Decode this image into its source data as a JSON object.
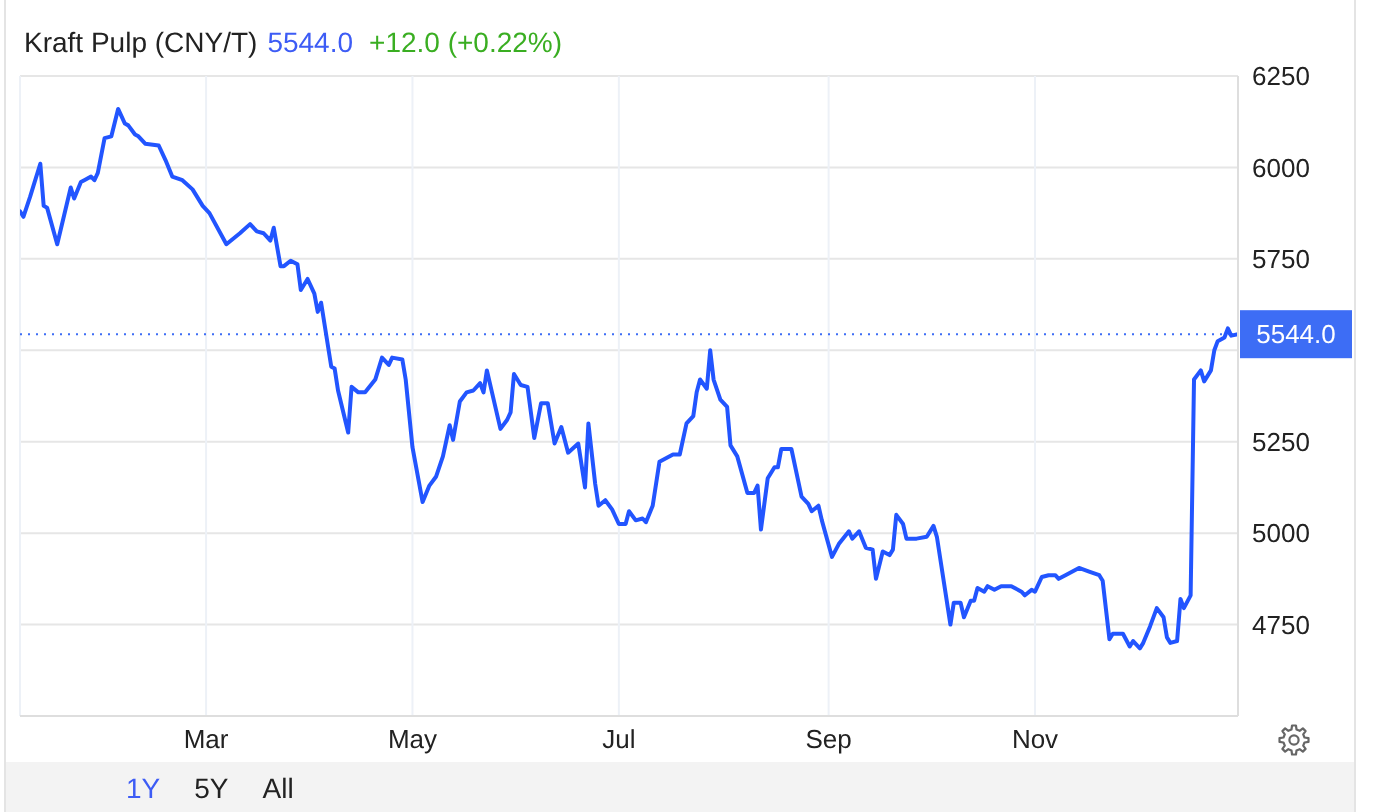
{
  "chart_data": {
    "type": "line",
    "title": "Kraft Pulp (CNY/T)",
    "annotations": [
      "5544.0",
      "+12.0 (+0.22%)",
      "1Y",
      "5Y",
      "All"
    ],
    "x": [
      "--01-05",
      "--01-06",
      "--01-08",
      "--01-09",
      "--01-11",
      "--01-12",
      "--01-13",
      "--01-16",
      "--01-20",
      "--01-21",
      "--01-23",
      "--01-24",
      "--01-26",
      "--01-27",
      "--01-28",
      "--01-30",
      "--02-01",
      "--02-03",
      "--02-05",
      "--02-06",
      "--02-08",
      "--02-09",
      "--02-11",
      "--02-15",
      "--02-17",
      "--02-19",
      "--02-22",
      "--02-25",
      "--02-28",
      "--03-02",
      "--03-07",
      "--03-11",
      "--03-14",
      "--03-16",
      "--03-18",
      "--03-19",
      "--03-20",
      "--03-21",
      "--03-23",
      "--03-24",
      "--03-26",
      "--03-28",
      "--03-29",
      "--03-31",
      "--04-02",
      "--04-03",
      "--04-04",
      "--04-07",
      "--04-08",
      "--04-09",
      "--04-12",
      "--04-13",
      "--04-15",
      "--04-17",
      "--04-20",
      "--04-22",
      "--04-24",
      "--04-25",
      "--04-28",
      "--04-29",
      "--05-01",
      "--05-04",
      "--05-06",
      "--05-08",
      "--05-10",
      "--05-12",
      "--05-13",
      "--05-15",
      "--05-17",
      "--05-19",
      "--05-21",
      "--05-22",
      "--05-23",
      "--05-27",
      "--05-29",
      "--05-30",
      "--05-31",
      "--06-02",
      "--06-04",
      "--06-06",
      "--06-08",
      "--06-10",
      "--06-12",
      "--06-14",
      "--06-16",
      "--06-19",
      "--06-21",
      "--06-22",
      "--06-24",
      "--06-25",
      "--06-27",
      "--06-29",
      "--07-01",
      "--07-03",
      "--07-04",
      "--07-06",
      "--07-08",
      "--07-09",
      "--07-11",
      "--07-13",
      "--07-17",
      "--07-19",
      "--07-21",
      "--07-23",
      "--07-24",
      "--07-25",
      "--07-27",
      "--07-28",
      "--07-29",
      "--07-31",
      "--08-02",
      "--08-03",
      "--08-05",
      "--08-08",
      "--08-10",
      "--08-11",
      "--08-12",
      "--08-14",
      "--08-16",
      "--08-17",
      "--08-18",
      "--08-21",
      "--08-24",
      "--08-26",
      "--08-27",
      "--08-29",
      "--08-30",
      "--09-02",
      "--09-04",
      "--09-07",
      "--09-08",
      "--09-10",
      "--09-12",
      "--09-14",
      "--09-15",
      "--09-17",
      "--09-19",
      "--09-20",
      "--09-21",
      "--09-23",
      "--09-24",
      "--09-27",
      "--09-30",
      "--10-02",
      "--10-03",
      "--10-07",
      "--10-08",
      "--10-10",
      "--10-11",
      "--10-13",
      "--10-14",
      "--10-15",
      "--10-17",
      "--10-18",
      "--10-20",
      "--10-22",
      "--10-25",
      "--10-28",
      "--10-29",
      "--10-31",
      "--11-01",
      "--11-03",
      "--11-05",
      "--11-07",
      "--11-08",
      "--11-10",
      "--11-14",
      "--11-17",
      "--11-20",
      "--11-21",
      "--11-23",
      "--11-24",
      "--11-27",
      "--11-29",
      "--11-30",
      "--12-02",
      "--12-03",
      "--12-05",
      "--12-07",
      "--12-09",
      "--12-10",
      "--12-11",
      "--12-13",
      "--12-14",
      "--12-15",
      "--12-17",
      "--12-18",
      "--12-20",
      "--12-21",
      "--12-23",
      "--12-24",
      "--12-25",
      "--12-27",
      "--12-28",
      "--12-29",
      "--12-31"
    ],
    "series": [
      {
        "color": "#2255ff",
        "values": [
          5880,
          5865,
          5920,
          5950,
          6010,
          5895,
          5890,
          5790,
          5945,
          5915,
          5960,
          5965,
          5975,
          5965,
          5985,
          6080,
          6085,
          6160,
          6120,
          6115,
          6090,
          6085,
          6065,
          6060,
          6020,
          5975,
          5965,
          5940,
          5895,
          5875,
          5790,
          5820,
          5845,
          5825,
          5820,
          5810,
          5800,
          5835,
          5730,
          5730,
          5745,
          5735,
          5665,
          5695,
          5655,
          5605,
          5630,
          5455,
          5450,
          5390,
          5275,
          5400,
          5385,
          5385,
          5420,
          5480,
          5460,
          5480,
          5475,
          5420,
          5235,
          5085,
          5130,
          5155,
          5210,
          5295,
          5255,
          5360,
          5385,
          5390,
          5410,
          5385,
          5445,
          5285,
          5310,
          5330,
          5435,
          5405,
          5400,
          5260,
          5355,
          5355,
          5245,
          5290,
          5220,
          5245,
          5125,
          5300,
          5135,
          5075,
          5090,
          5065,
          5025,
          5025,
          5060,
          5035,
          5040,
          5030,
          5075,
          5195,
          5215,
          5215,
          5300,
          5320,
          5385,
          5420,
          5395,
          5500,
          5420,
          5365,
          5345,
          5240,
          5210,
          5110,
          5110,
          5130,
          5010,
          5150,
          5180,
          5180,
          5230,
          5230,
          5100,
          5080,
          5060,
          5075,
          5035,
          4935,
          4970,
          5005,
          4985,
          5005,
          4960,
          4955,
          4875,
          4950,
          4940,
          4955,
          5050,
          5025,
          4985,
          4985,
          4990,
          5020,
          4990,
          4750,
          4810,
          4810,
          4770,
          4815,
          4815,
          4850,
          4840,
          4855,
          4845,
          4855,
          4855,
          4840,
          4830,
          4845,
          4840,
          4880,
          4885,
          4885,
          4875,
          4885,
          4905,
          4895,
          4885,
          4870,
          4710,
          4725,
          4725,
          4690,
          4705,
          4685,
          4700,
          4745,
          4795,
          4770,
          4715,
          4700,
          4705,
          4820,
          4795,
          4830,
          5420,
          5445,
          5415,
          5445,
          5500,
          5525,
          5535,
          5560,
          5540,
          5544
        ]
      }
    ],
    "xlim": [
      "--01-05",
      "--12-31"
    ],
    "xticks": [
      {
        "value": "--03-01",
        "label": "Mar"
      },
      {
        "value": "--05-01",
        "label": "May"
      },
      {
        "value": "--07-01",
        "label": "Jul"
      },
      {
        "value": "--09-01",
        "label": "Sep"
      },
      {
        "value": "--11-01",
        "label": "Nov"
      }
    ],
    "ylim": [
      4500,
      6250
    ],
    "yticks": [
      4750,
      5000,
      5250,
      {
        "value": 5500,
        "label": null
      },
      5750,
      6000,
      6250
    ],
    "grid": true,
    "ref_lines": [
      {
        "axis": "y",
        "value": 5544,
        "label": "5544.0",
        "color": "#3d6df5",
        "line_style": "dotted"
      }
    ]
  }
}
